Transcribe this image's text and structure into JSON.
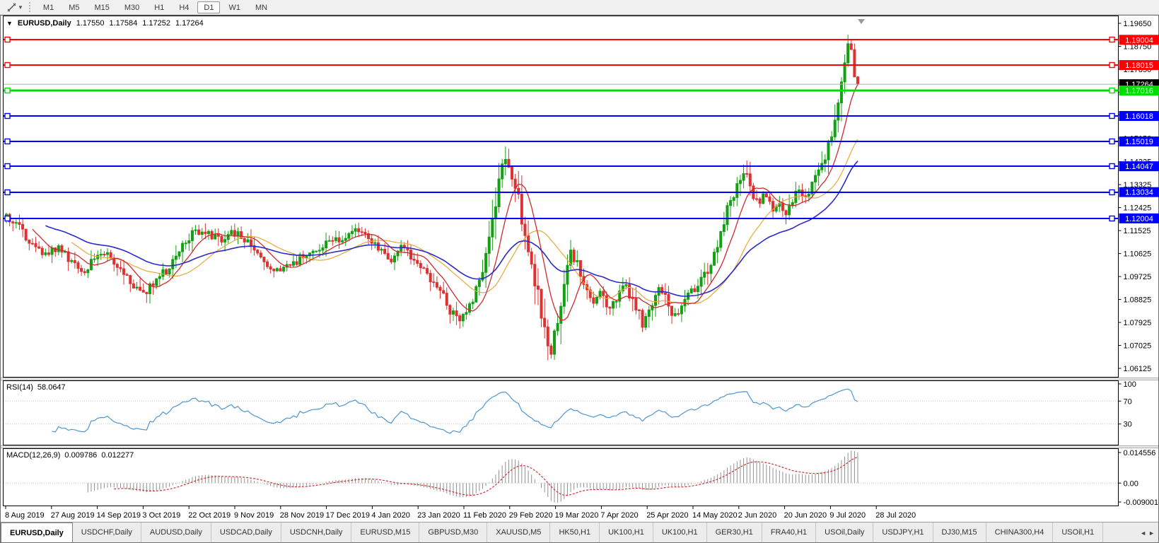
{
  "toolbar": {
    "timeframes": [
      "M1",
      "M5",
      "M15",
      "M30",
      "H1",
      "H4",
      "D1",
      "W1",
      "MN"
    ],
    "active_timeframe": "D1"
  },
  "title": {
    "collapse_icon": "▼",
    "symbol": "EURUSD,Daily",
    "open": "1.17550",
    "high": "1.17584",
    "low": "1.17252",
    "close": "1.17264"
  },
  "price_axis": {
    "ticks": [
      "1.19650",
      "1.18750",
      "1.17850",
      "1.16950",
      "1.16050",
      "1.15150",
      "1.14225",
      "1.13325",
      "1.12425",
      "1.11525",
      "1.10625",
      "1.09725",
      "1.08825",
      "1.07925",
      "1.07025",
      "1.06125"
    ]
  },
  "hlines": [
    {
      "label": "1.19004",
      "value": 1.19004,
      "color": "#FF0000",
      "thickness": 2
    },
    {
      "label": "1.18015",
      "value": 1.18015,
      "color": "#FF0000",
      "thickness": 2
    },
    {
      "label": "1.17016",
      "value": 1.17016,
      "color": "#00DD00",
      "thickness": 3
    },
    {
      "label": "1.16018",
      "value": 1.16018,
      "color": "#0000FF",
      "thickness": 2
    },
    {
      "label": "1.15019",
      "value": 1.15019,
      "color": "#0000FF",
      "thickness": 2
    },
    {
      "label": "1.14047",
      "value": 1.14047,
      "color": "#0000FF",
      "thickness": 2
    },
    {
      "label": "1.13034",
      "value": 1.13034,
      "color": "#0000FF",
      "thickness": 2
    },
    {
      "label": "1.12004",
      "value": 1.12004,
      "color": "#0000FF",
      "thickness": 2
    }
  ],
  "current_price": {
    "label": "1.17264",
    "value": 1.17264,
    "line_color": "#ababab",
    "label_bg": "#000000"
  },
  "date_axis": {
    "labels": [
      "8 Aug 2019",
      "27 Aug 2019",
      "14 Sep 2019",
      "3 Oct 2019",
      "22 Oct 2019",
      "9 Nov 2019",
      "28 Nov 2019",
      "17 Dec 2019",
      "4 Jan 2020",
      "23 Jan 2020",
      "11 Feb 2020",
      "29 Feb 2020",
      "19 Mar 2020",
      "7 Apr 2020",
      "25 Apr 2020",
      "14 May 2020",
      "2 Jun 2020",
      "20 Jun 2020",
      "9 Jul 2020",
      "28 Jul 2020"
    ]
  },
  "rsi": {
    "name": "RSI(14)",
    "value": "58.0647",
    "axis_labels": [
      "100",
      "70",
      "30"
    ],
    "axis_values": [
      100,
      70,
      30
    ],
    "levels": [
      70,
      30
    ],
    "color": "#4D96D2"
  },
  "macd": {
    "name": "MACD(12,26,9)",
    "main_value": "0.009786",
    "signal_value": "0.012277",
    "axis_labels": [
      "0.014556",
      "0.00",
      "-0.009001"
    ],
    "axis_values": [
      0.014556,
      0,
      -0.009001
    ],
    "hist_color": "#909090",
    "signal_color": "#CC3333"
  },
  "tabs": {
    "items": [
      "EURUSD,Daily",
      "USDCHF,Daily",
      "AUDUSD,Daily",
      "USDCAD,Daily",
      "USDCNH,Daily",
      "EURUSD,M15",
      "GBPUSD,M30",
      "XAUUSD,M5",
      "HK50,H1",
      "UK100,H1",
      "UK100,H1",
      "GER30,H1",
      "FRA40,H1",
      "USOil,Daily",
      "USDJPY,H1",
      "DJ30,M15",
      "CHINA300,H4",
      "USOil,H1"
    ],
    "active_index": 0,
    "scroll_left_icon": "◄",
    "scroll_right_icon": "►"
  },
  "chart_data": {
    "type": "candlestick",
    "symbol": "EURUSD",
    "timeframe": "Daily",
    "title": "EURUSD,Daily 1.17550 1.17584 1.17252 1.17264",
    "x_range": [
      "8 Aug 2019",
      "7 Aug 2020"
    ],
    "y_range": [
      1.06125,
      1.1965
    ],
    "grid": false,
    "candle_count": 262,
    "last_candle_ohlc": [
      1.1755,
      1.17584,
      1.17252,
      1.17264
    ],
    "bull_color": "#14A014",
    "bear_color": "#DD3232",
    "price_path": [
      [
        0.0,
        1.1205
      ],
      [
        0.01,
        1.1185
      ],
      [
        0.025,
        1.112
      ],
      [
        0.045,
        1.106
      ],
      [
        0.06,
        1.109
      ],
      [
        0.075,
        1.103
      ],
      [
        0.09,
        1.099
      ],
      [
        0.105,
        1.1045
      ],
      [
        0.115,
        1.107
      ],
      [
        0.13,
        1.101
      ],
      [
        0.145,
        1.096
      ],
      [
        0.16,
        1.0895
      ],
      [
        0.175,
        1.096
      ],
      [
        0.19,
        1.1005
      ],
      [
        0.205,
        1.108
      ],
      [
        0.22,
        1.114
      ],
      [
        0.235,
        1.1155
      ],
      [
        0.25,
        1.111
      ],
      [
        0.262,
        1.115
      ],
      [
        0.275,
        1.1135
      ],
      [
        0.29,
        1.108
      ],
      [
        0.305,
        1.101
      ],
      [
        0.32,
        1.1
      ],
      [
        0.335,
        1.1015
      ],
      [
        0.35,
        1.106
      ],
      [
        0.365,
        1.108
      ],
      [
        0.38,
        1.1105
      ],
      [
        0.395,
        1.112
      ],
      [
        0.41,
        1.1165
      ],
      [
        0.422,
        1.1135
      ],
      [
        0.435,
        1.11
      ],
      [
        0.45,
        1.103
      ],
      [
        0.463,
        1.1085
      ],
      [
        0.478,
        1.1045
      ],
      [
        0.493,
        1.0985
      ],
      [
        0.508,
        1.0925
      ],
      [
        0.522,
        1.0835
      ],
      [
        0.533,
        1.079
      ],
      [
        0.545,
        1.0855
      ],
      [
        0.556,
        1.096
      ],
      [
        0.566,
        1.1085
      ],
      [
        0.576,
        1.13
      ],
      [
        0.585,
        1.1445
      ],
      [
        0.592,
        1.138
      ],
      [
        0.6,
        1.1295
      ],
      [
        0.608,
        1.115
      ],
      [
        0.616,
        1.1045
      ],
      [
        0.624,
        1.09
      ],
      [
        0.632,
        1.075
      ],
      [
        0.639,
        1.066
      ],
      [
        0.647,
        1.0785
      ],
      [
        0.655,
        1.095
      ],
      [
        0.662,
        1.106
      ],
      [
        0.67,
        1.102
      ],
      [
        0.678,
        1.094
      ],
      [
        0.688,
        1.0872
      ],
      [
        0.697,
        1.091
      ],
      [
        0.707,
        1.0845
      ],
      [
        0.717,
        1.089
      ],
      [
        0.727,
        1.094
      ],
      [
        0.737,
        1.087
      ],
      [
        0.747,
        1.0792
      ],
      [
        0.757,
        1.087
      ],
      [
        0.767,
        1.093
      ],
      [
        0.777,
        1.0872
      ],
      [
        0.787,
        1.08
      ],
      [
        0.797,
        1.088
      ],
      [
        0.807,
        1.092
      ],
      [
        0.817,
        1.0962
      ],
      [
        0.827,
        1.101
      ],
      [
        0.837,
        1.111
      ],
      [
        0.847,
        1.123
      ],
      [
        0.856,
        1.132
      ],
      [
        0.866,
        1.139
      ],
      [
        0.875,
        1.1302
      ],
      [
        0.883,
        1.1252
      ],
      [
        0.891,
        1.13
      ],
      [
        0.899,
        1.1232
      ],
      [
        0.907,
        1.1262
      ],
      [
        0.915,
        1.1212
      ],
      [
        0.923,
        1.127
      ],
      [
        0.931,
        1.131
      ],
      [
        0.939,
        1.1282
      ],
      [
        0.947,
        1.133
      ],
      [
        0.955,
        1.14
      ],
      [
        0.963,
        1.1452
      ],
      [
        0.971,
        1.156
      ],
      [
        0.979,
        1.172
      ],
      [
        0.986,
        1.1862
      ],
      [
        0.991,
        1.1888
      ],
      [
        0.995,
        1.184
      ],
      [
        1.0,
        1.1745
      ]
    ],
    "moving_averages": [
      {
        "name": "fast",
        "method": "sma",
        "period": 9,
        "color": "#D02A2A"
      },
      {
        "name": "medium",
        "method": "sma",
        "period": 21,
        "color": "#E8A838"
      },
      {
        "name": "slow",
        "method": "ema",
        "period": 40,
        "color": "#2A2AC8"
      }
    ],
    "horizontal_levels": [
      1.19004,
      1.18015,
      1.17016,
      1.16018,
      1.15019,
      1.14047,
      1.13034,
      1.12004
    ],
    "rsi_period": 14,
    "macd_params": [
      12,
      26,
      9
    ]
  }
}
